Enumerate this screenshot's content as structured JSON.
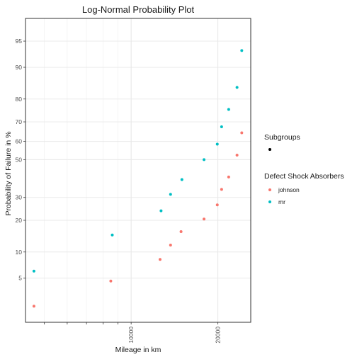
{
  "chart_data": {
    "type": "scatter",
    "title": "Log-Normal Probability Plot",
    "xlabel": "Mileage in km",
    "ylabel": "Probability of Failure in %",
    "xscale": "log",
    "yscale": "lognormal-probability",
    "xlim": [
      4300,
      26000
    ],
    "ylim": [
      1.2,
      97.5
    ],
    "x_ticks": [
      10000,
      20000
    ],
    "x_tick_labels": [
      "10000",
      "20000"
    ],
    "x_minor_ticks": [
      5000,
      6000,
      7000,
      8000,
      9000
    ],
    "y_ticks": [
      5,
      10,
      20,
      30,
      50,
      60,
      70,
      80,
      90,
      95
    ],
    "grid": true,
    "legend": {
      "position": "right",
      "groups": [
        {
          "title": "Subgroups",
          "entries": [
            {
              "label": "",
              "color": "#000000"
            }
          ]
        },
        {
          "title": "Defect Shock Absorbers",
          "entries": [
            {
              "label": "johnson",
              "color": "#F8766D"
            },
            {
              "label": "mr",
              "color": "#00BFC4"
            }
          ]
        }
      ]
    },
    "series": [
      {
        "name": "johnson",
        "color": "#F8766D",
        "points": [
          {
            "x": 4600,
            "y": 2.1
          },
          {
            "x": 8500,
            "y": 4.6
          },
          {
            "x": 12600,
            "y": 8.3
          },
          {
            "x": 13700,
            "y": 11.8
          },
          {
            "x": 14900,
            "y": 15.9
          },
          {
            "x": 17900,
            "y": 20.5
          },
          {
            "x": 19900,
            "y": 26.5
          },
          {
            "x": 20600,
            "y": 34
          },
          {
            "x": 21800,
            "y": 40.5
          },
          {
            "x": 23300,
            "y": 52.5
          },
          {
            "x": 24200,
            "y": 64.5
          }
        ]
      },
      {
        "name": "mr",
        "color": "#00BFC4",
        "points": [
          {
            "x": 4600,
            "y": 6.1
          },
          {
            "x": 8600,
            "y": 14.8
          },
          {
            "x": 12700,
            "y": 23.9
          },
          {
            "x": 13700,
            "y": 31.5
          },
          {
            "x": 15000,
            "y": 39.1
          },
          {
            "x": 17900,
            "y": 50.0
          },
          {
            "x": 19900,
            "y": 58.5
          },
          {
            "x": 20600,
            "y": 67.6
          },
          {
            "x": 21800,
            "y": 75.7
          },
          {
            "x": 23300,
            "y": 84.2
          },
          {
            "x": 24200,
            "y": 93.5
          }
        ]
      }
    ]
  }
}
